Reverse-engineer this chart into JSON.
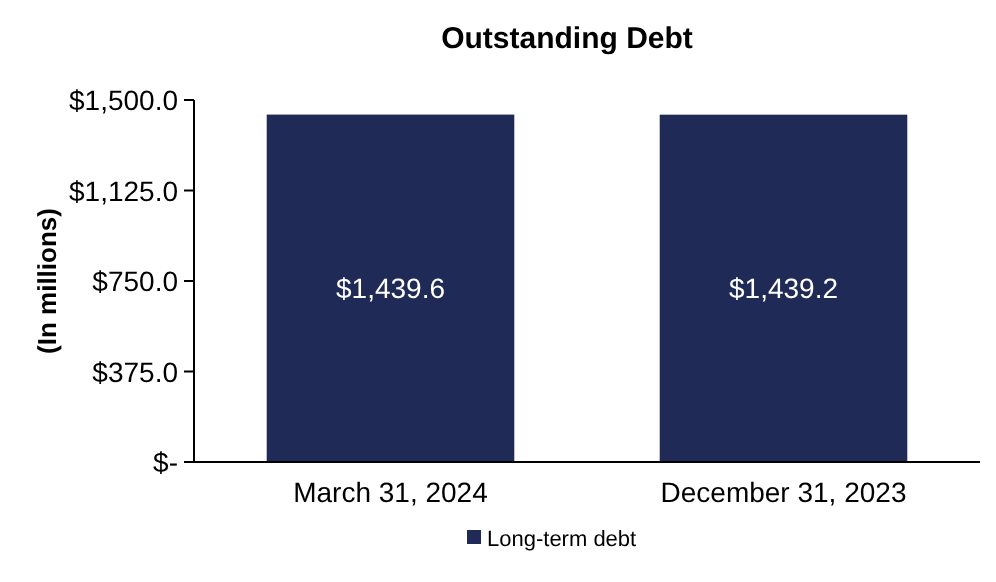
{
  "chart_data": {
    "type": "bar",
    "title": "Outstanding Debt",
    "ylabel": "(In millions)",
    "categories": [
      "March 31, 2024",
      "December 31, 2023"
    ],
    "series": [
      {
        "name": "Long-term debt",
        "color": "#1f2a56",
        "values": [
          1439.6,
          1439.2
        ],
        "value_labels": [
          "$1,439.6",
          "$1,439.2"
        ]
      }
    ],
    "ylim": [
      0,
      1500
    ],
    "yticks": [
      {
        "value": 0,
        "label": "$-"
      },
      {
        "value": 375,
        "label": "$375.0"
      },
      {
        "value": 750,
        "label": "$750.0"
      },
      {
        "value": 1125,
        "label": "$1,125.0"
      },
      {
        "value": 1500,
        "label": "$1,500.0"
      }
    ],
    "grid": false,
    "legend": "bottom"
  }
}
